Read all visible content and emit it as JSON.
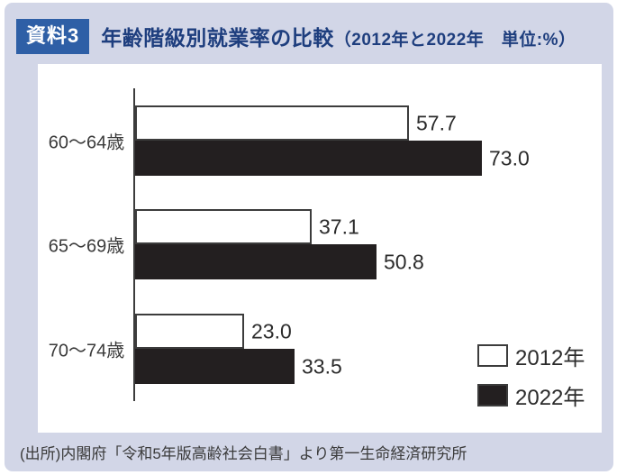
{
  "header": {
    "badge": "資料3",
    "title": "年齢階級別就業率の比較",
    "title_paren": "（2012年と2022年　単位:%）"
  },
  "chart_data": {
    "type": "bar",
    "orientation": "horizontal",
    "title": "年齢階級別就業率の比較（2012年と2022年）",
    "unit": "%",
    "categories": [
      "60～64歳",
      "65～69歳",
      "70～74歳"
    ],
    "series": [
      {
        "name": "2012年",
        "values": [
          57.7,
          37.1,
          23.0
        ],
        "fill": "#ffffff",
        "border": "#3c3c3c"
      },
      {
        "name": "2022年",
        "values": [
          73.0,
          50.8,
          33.5
        ],
        "fill": "#231f20",
        "border": "#231f20"
      }
    ],
    "xlim": [
      0,
      95
    ],
    "grid": false,
    "value_labels_shown": true,
    "legend_position": "bottom-right"
  },
  "legend": {
    "items": [
      {
        "label": "2012年",
        "fill": "#ffffff"
      },
      {
        "label": "2022年",
        "fill": "#231f20"
      }
    ]
  },
  "footer": {
    "source": "(出所)内閣府「令和5年版高齢社会白書」より第一生命経済研究所"
  },
  "colors": {
    "card_background": "#d2d6e7",
    "badge_background": "#2e5fa6",
    "title_text": "#1e3e7e",
    "bar_2012": "#ffffff",
    "bar_2022": "#231f20",
    "axis": "#3c3c3c"
  }
}
